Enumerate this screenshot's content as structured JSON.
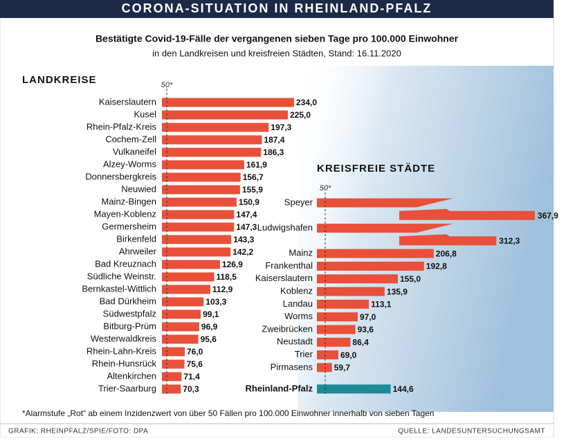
{
  "header": {
    "title": "CORONA-SITUATION IN RHEINLAND-PFALZ",
    "subtitle": "Bestätigte Covid-19-Fälle der vergangenen sieben Tage pro 100.000 Einwohner",
    "subsubtitle": "in den Landkreisen und kreisfreien Städten, Stand: 16.11.2020"
  },
  "chart_data": [
    {
      "type": "bar",
      "orientation": "horizontal",
      "title": "LANDKREISE",
      "categories": [
        "Kaiserslautern",
        "Kusel",
        "Rhein-Pfalz-Kreis",
        "Cochem-Zell",
        "Vulkaneifel",
        "Alzey-Worms",
        "Donnersbergkreis",
        "Neuwied",
        "Mainz-Bingen",
        "Mayen-Koblenz",
        "Germersheim",
        "Birkenfeld",
        "Ahrweiler",
        "Bad Kreuznach",
        "Südliche Weinstr.",
        "Bernkastel-Wittlich",
        "Bad Dürkheim",
        "Südwestpfalz",
        "Bitburg-Prüm",
        "Westerwaldkreis",
        "Rhein-Lahn-Kreis",
        "Rhein-Hunsrück",
        "Altenkirchen",
        "Trier-Saarburg"
      ],
      "values": [
        234.0,
        225.0,
        197.3,
        187.4,
        186.3,
        161.9,
        156.7,
        155.9,
        150.9,
        147.4,
        147.3,
        143.3,
        142.2,
        126.9,
        118.5,
        112.9,
        103.3,
        99.1,
        96.9,
        95.6,
        76.0,
        75.6,
        71.4,
        70.3
      ],
      "value_labels": [
        "234,0",
        "225,0",
        "197,3",
        "187,4",
        "186,3",
        "161,9",
        "156,7",
        "155,9",
        "150,9",
        "147,4",
        "147,3",
        "143,3",
        "142,2",
        "126,9",
        "118,5",
        "112,9",
        "103,3",
        "99,1",
        "96,9",
        "95,6",
        "76,0",
        "75,6",
        "71,4",
        "70,3"
      ],
      "color": "#e8503a",
      "xlim": [
        0,
        240
      ],
      "xticks": [
        {
          "value": 50,
          "label": "50*"
        }
      ]
    },
    {
      "type": "bar",
      "orientation": "horizontal",
      "title": "KREISFREIE STÄDTE",
      "categories": [
        "Speyer",
        "Ludwigshafen",
        "Mainz",
        "Frankenthal",
        "Kaiserslautern",
        "Koblenz",
        "Landau",
        "Worms",
        "Zweibrücken",
        "Neustadt",
        "Trier",
        "Pirmasens",
        "Rheinland-Pfalz"
      ],
      "values": [
        367.9,
        312.3,
        206.8,
        192.8,
        155.0,
        135.9,
        113.1,
        97.0,
        93.6,
        86.4,
        69.0,
        59.7,
        144.6
      ],
      "value_labels": [
        "367,9",
        "312,3",
        "206,8",
        "192,8",
        "155,0",
        "135,9",
        "113,1",
        "97,0",
        "93,6",
        "86,4",
        "69,0",
        "59,7",
        "144,6"
      ],
      "color": "#e8503a",
      "colors": [
        "#e8503a",
        "#e8503a",
        "#e8503a",
        "#e8503a",
        "#e8503a",
        "#e8503a",
        "#e8503a",
        "#e8503a",
        "#e8503a",
        "#e8503a",
        "#e8503a",
        "#e8503a",
        "#1d8a99"
      ],
      "xlim": [
        0,
        220
      ],
      "xticks": [
        {
          "value": 50,
          "label": "50*"
        }
      ]
    }
  ],
  "footnote": "*Alarmstufe „Rot“ ab einem Inzidenzwert von über 50 Fällen pro 100.000 Einwohner innerhalb von sieben Tagen",
  "credit": "GRAFIK: RHEINPFALZ/SPIE/FOTO: DPA",
  "source": "QUELLE: LANDESUNTERSUCHUNGSAMT"
}
